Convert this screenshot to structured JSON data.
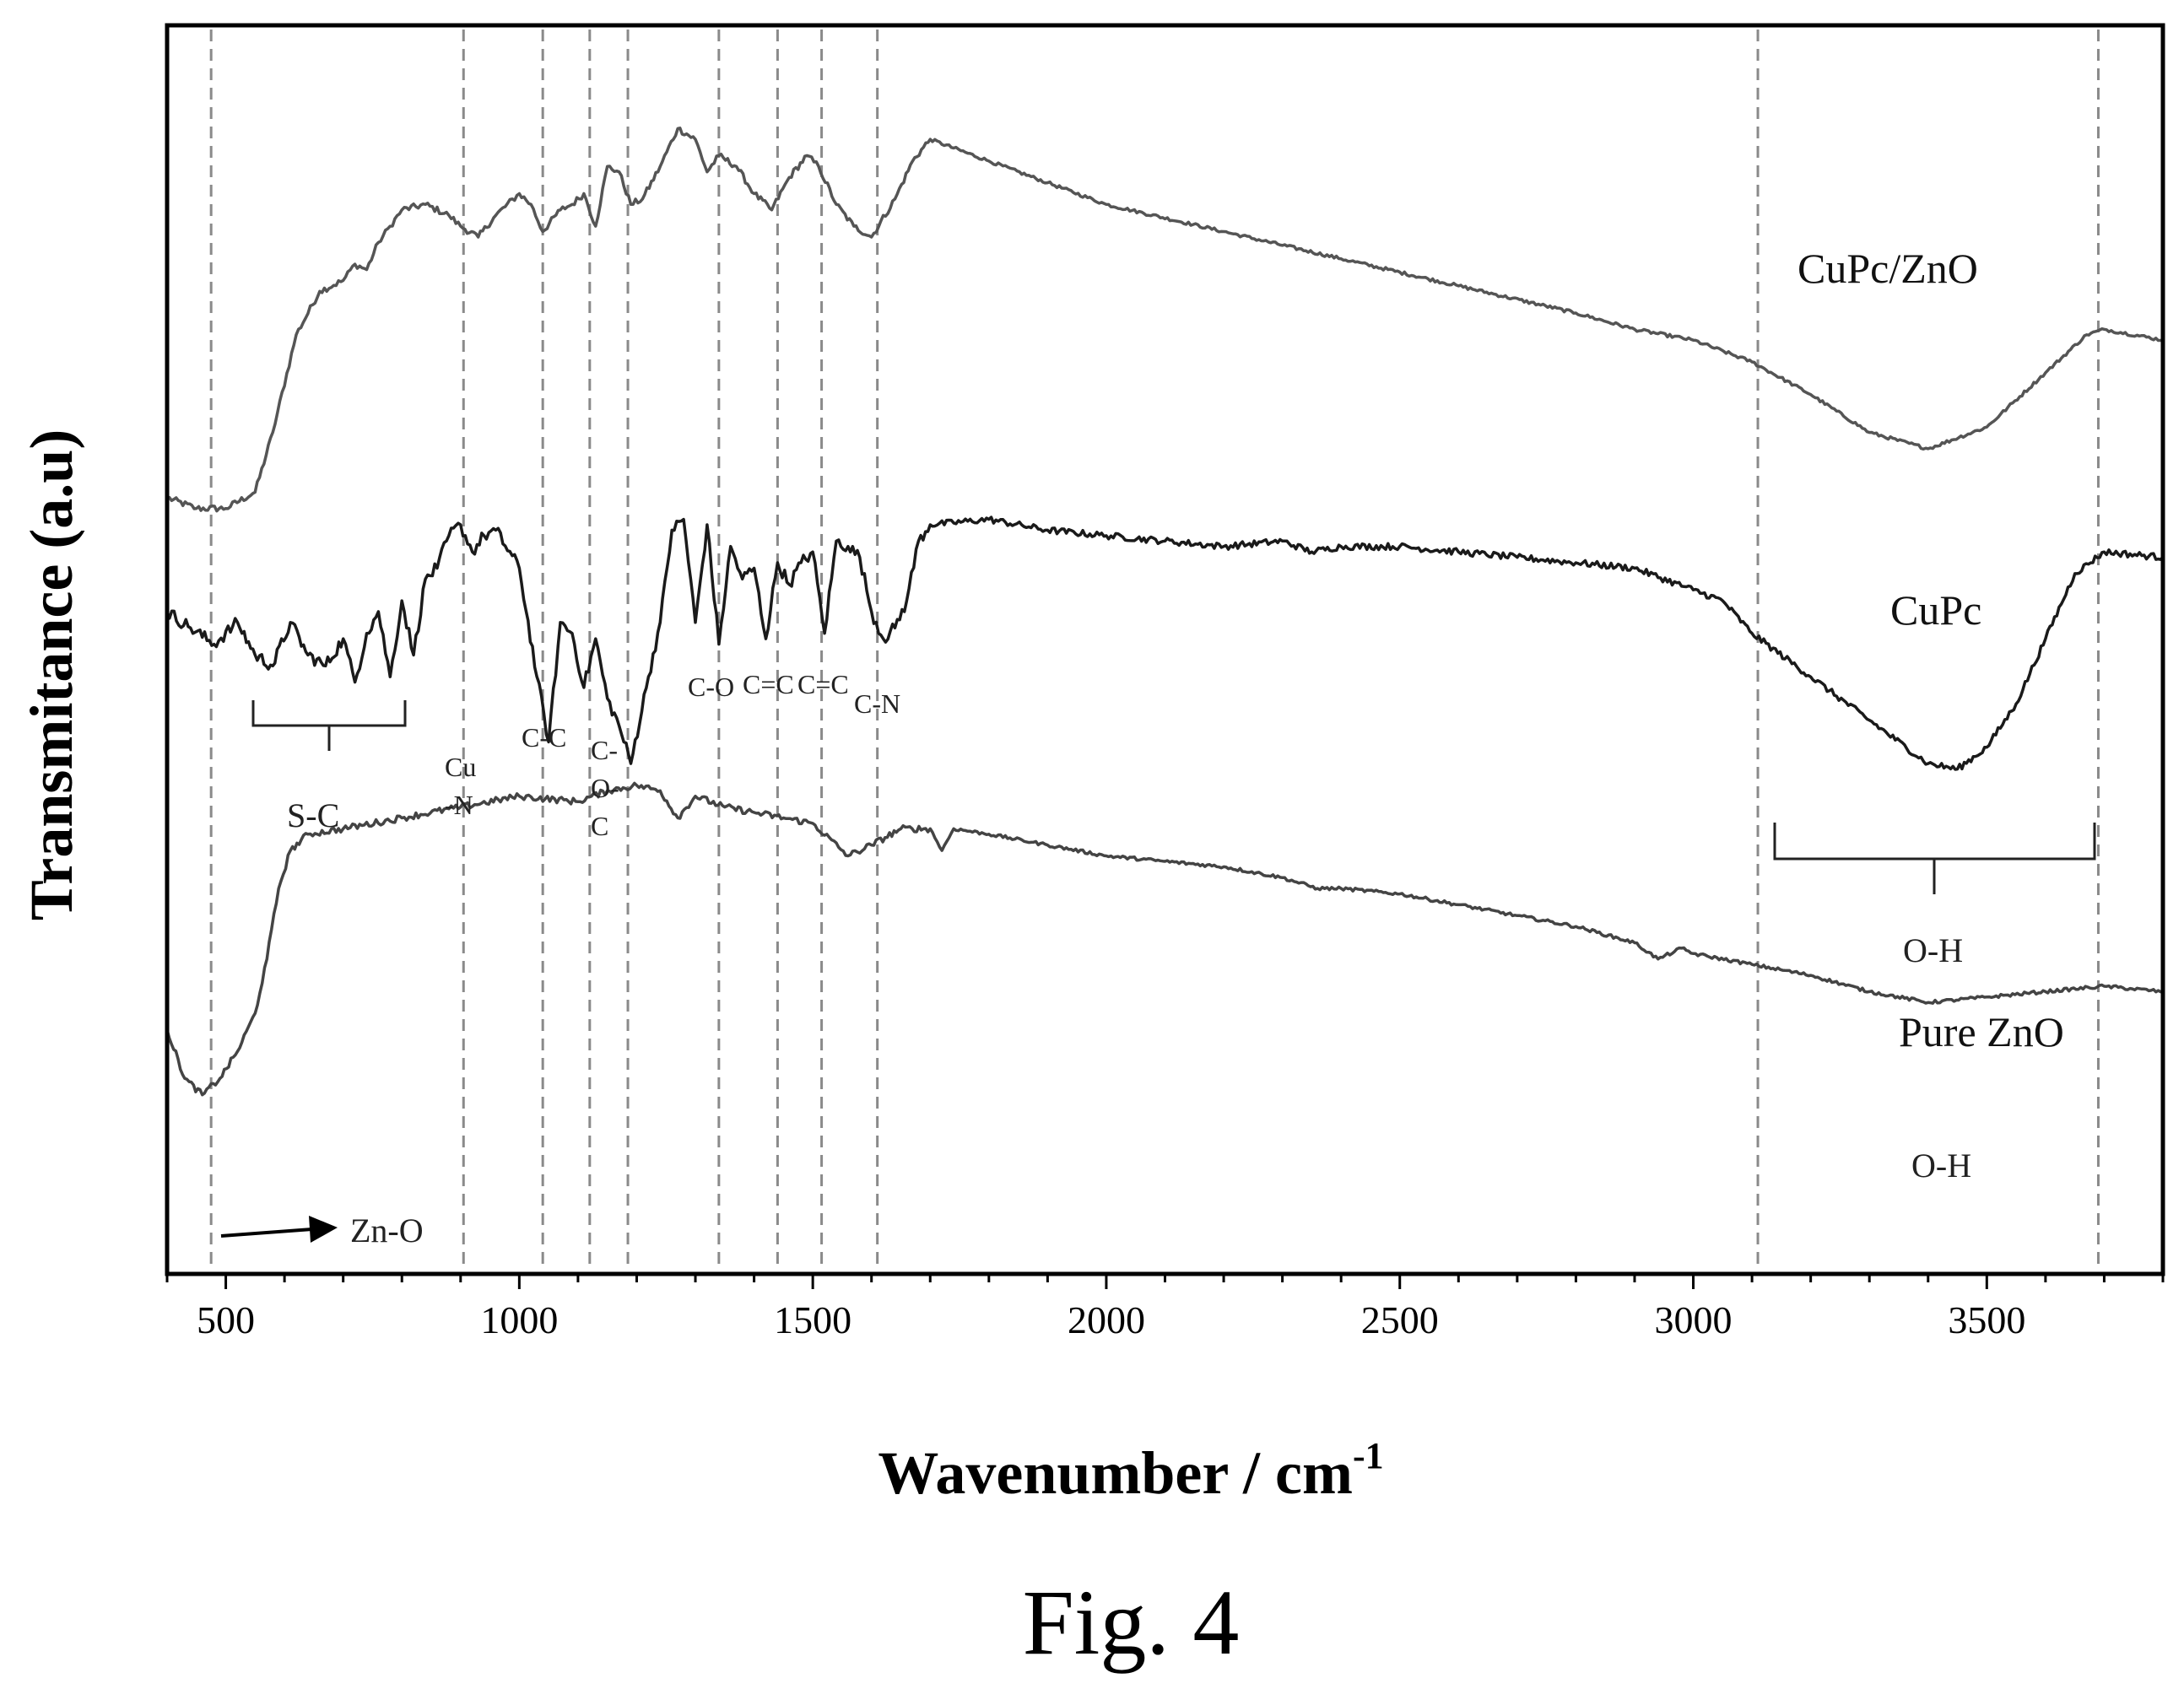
{
  "figure_caption": "Fig. 4",
  "chart_data": {
    "type": "line",
    "title": "",
    "xlabel": "Wavenumber / cm",
    "xlabel_superscript": "-1",
    "ylabel": "Transmitance (a.u)",
    "xlim": [
      400,
      3800
    ],
    "x_ticks": [
      500,
      1000,
      1500,
      2000,
      2500,
      3000,
      3500
    ],
    "x_minor_step": 100,
    "y_ticks": [],
    "grid": false,
    "series": [
      {
        "name": "CuPc/ZnO",
        "color": "#555555",
        "points": [
          [
            400,
            1.43
          ],
          [
            450,
            1.41
          ],
          [
            500,
            1.41
          ],
          [
            550,
            1.44
          ],
          [
            580,
            1.55
          ],
          [
            620,
            1.73
          ],
          [
            660,
            1.81
          ],
          [
            700,
            1.83
          ],
          [
            720,
            1.86
          ],
          [
            740,
            1.85
          ],
          [
            760,
            1.9
          ],
          [
            780,
            1.93
          ],
          [
            800,
            1.96
          ],
          [
            840,
            1.97
          ],
          [
            880,
            1.95
          ],
          [
            900,
            1.93
          ],
          [
            930,
            1.91
          ],
          [
            960,
            1.95
          ],
          [
            1000,
            1.99
          ],
          [
            1020,
            1.97
          ],
          [
            1040,
            1.92
          ],
          [
            1070,
            1.96
          ],
          [
            1090,
            1.97
          ],
          [
            1110,
            1.99
          ],
          [
            1130,
            1.93
          ],
          [
            1150,
            2.04
          ],
          [
            1170,
            2.03
          ],
          [
            1190,
            1.97
          ],
          [
            1210,
            1.98
          ],
          [
            1240,
            2.04
          ],
          [
            1270,
            2.11
          ],
          [
            1300,
            2.09
          ],
          [
            1320,
            2.03
          ],
          [
            1340,
            2.06
          ],
          [
            1370,
            2.04
          ],
          [
            1400,
            1.99
          ],
          [
            1430,
            1.96
          ],
          [
            1460,
            2.02
          ],
          [
            1490,
            2.06
          ],
          [
            1510,
            2.04
          ],
          [
            1540,
            1.97
          ],
          [
            1570,
            1.93
          ],
          [
            1600,
            1.91
          ],
          [
            1640,
            1.98
          ],
          [
            1670,
            2.05
          ],
          [
            1700,
            2.09
          ],
          [
            1800,
            2.05
          ],
          [
            1900,
            2.01
          ],
          [
            2000,
            1.97
          ],
          [
            2200,
            1.92
          ],
          [
            2400,
            1.87
          ],
          [
            2600,
            1.82
          ],
          [
            2800,
            1.77
          ],
          [
            2900,
            1.74
          ],
          [
            3000,
            1.72
          ],
          [
            3100,
            1.68
          ],
          [
            3200,
            1.62
          ],
          [
            3300,
            1.55
          ],
          [
            3400,
            1.52
          ],
          [
            3500,
            1.56
          ],
          [
            3600,
            1.66
          ],
          [
            3670,
            1.73
          ],
          [
            3700,
            1.74
          ],
          [
            3800,
            1.72
          ]
        ]
      },
      {
        "name": "CuPc",
        "color": "#1a1a1a",
        "points": [
          [
            400,
            1.22
          ],
          [
            440,
            1.19
          ],
          [
            480,
            1.16
          ],
          [
            520,
            1.2
          ],
          [
            550,
            1.14
          ],
          [
            580,
            1.12
          ],
          [
            610,
            1.2
          ],
          [
            640,
            1.14
          ],
          [
            670,
            1.12
          ],
          [
            700,
            1.17
          ],
          [
            720,
            1.09
          ],
          [
            740,
            1.18
          ],
          [
            760,
            1.22
          ],
          [
            780,
            1.1
          ],
          [
            800,
            1.24
          ],
          [
            820,
            1.14
          ],
          [
            840,
            1.28
          ],
          [
            860,
            1.3
          ],
          [
            880,
            1.36
          ],
          [
            900,
            1.38
          ],
          [
            920,
            1.33
          ],
          [
            940,
            1.36
          ],
          [
            960,
            1.37
          ],
          [
            1000,
            1.3
          ],
          [
            1030,
            1.1
          ],
          [
            1050,
            0.98
          ],
          [
            1070,
            1.2
          ],
          [
            1090,
            1.18
          ],
          [
            1110,
            1.08
          ],
          [
            1130,
            1.17
          ],
          [
            1150,
            1.06
          ],
          [
            1170,
            1.01
          ],
          [
            1190,
            0.94
          ],
          [
            1220,
            1.1
          ],
          [
            1240,
            1.2
          ],
          [
            1260,
            1.37
          ],
          [
            1280,
            1.39
          ],
          [
            1300,
            1.2
          ],
          [
            1320,
            1.38
          ],
          [
            1340,
            1.16
          ],
          [
            1360,
            1.34
          ],
          [
            1380,
            1.28
          ],
          [
            1400,
            1.3
          ],
          [
            1420,
            1.17
          ],
          [
            1440,
            1.31
          ],
          [
            1460,
            1.27
          ],
          [
            1480,
            1.31
          ],
          [
            1500,
            1.33
          ],
          [
            1520,
            1.18
          ],
          [
            1540,
            1.35
          ],
          [
            1560,
            1.34
          ],
          [
            1580,
            1.32
          ],
          [
            1600,
            1.22
          ],
          [
            1620,
            1.17
          ],
          [
            1640,
            1.19
          ],
          [
            1660,
            1.24
          ],
          [
            1680,
            1.35
          ],
          [
            1700,
            1.38
          ],
          [
            1800,
            1.39
          ],
          [
            1900,
            1.37
          ],
          [
            2000,
            1.36
          ],
          [
            2100,
            1.35
          ],
          [
            2200,
            1.34
          ],
          [
            2300,
            1.35
          ],
          [
            2350,
            1.33
          ],
          [
            2400,
            1.34
          ],
          [
            2500,
            1.34
          ],
          [
            2600,
            1.33
          ],
          [
            2700,
            1.32
          ],
          [
            2800,
            1.31
          ],
          [
            2900,
            1.3
          ],
          [
            3000,
            1.26
          ],
          [
            3050,
            1.24
          ],
          [
            3100,
            1.18
          ],
          [
            3200,
            1.1
          ],
          [
            3300,
            1.02
          ],
          [
            3400,
            0.94
          ],
          [
            3450,
            0.93
          ],
          [
            3500,
            0.97
          ],
          [
            3550,
            1.05
          ],
          [
            3600,
            1.17
          ],
          [
            3650,
            1.29
          ],
          [
            3700,
            1.33
          ],
          [
            3800,
            1.32
          ]
        ]
      },
      {
        "name": "Pure ZnO",
        "color": "#444444",
        "points": [
          [
            400,
            0.45
          ],
          [
            430,
            0.36
          ],
          [
            460,
            0.33
          ],
          [
            490,
            0.36
          ],
          [
            520,
            0.41
          ],
          [
            550,
            0.48
          ],
          [
            570,
            0.58
          ],
          [
            590,
            0.71
          ],
          [
            610,
            0.78
          ],
          [
            640,
            0.81
          ],
          [
            700,
            0.82
          ],
          [
            800,
            0.84
          ],
          [
            900,
            0.86
          ],
          [
            1000,
            0.88
          ],
          [
            1100,
            0.87
          ],
          [
            1150,
            0.89
          ],
          [
            1200,
            0.9
          ],
          [
            1240,
            0.89
          ],
          [
            1270,
            0.84
          ],
          [
            1300,
            0.88
          ],
          [
            1350,
            0.86
          ],
          [
            1400,
            0.85
          ],
          [
            1450,
            0.84
          ],
          [
            1500,
            0.83
          ],
          [
            1560,
            0.77
          ],
          [
            1600,
            0.79
          ],
          [
            1650,
            0.82
          ],
          [
            1700,
            0.82
          ],
          [
            1720,
            0.78
          ],
          [
            1740,
            0.82
          ],
          [
            1800,
            0.81
          ],
          [
            1900,
            0.79
          ],
          [
            2000,
            0.77
          ],
          [
            2100,
            0.76
          ],
          [
            2200,
            0.75
          ],
          [
            2300,
            0.73
          ],
          [
            2360,
            0.71
          ],
          [
            2400,
            0.71
          ],
          [
            2500,
            0.7
          ],
          [
            2600,
            0.68
          ],
          [
            2700,
            0.66
          ],
          [
            2800,
            0.64
          ],
          [
            2900,
            0.61
          ],
          [
            2940,
            0.58
          ],
          [
            2980,
            0.6
          ],
          [
            3000,
            0.59
          ],
          [
            3100,
            0.57
          ],
          [
            3200,
            0.55
          ],
          [
            3300,
            0.52
          ],
          [
            3400,
            0.5
          ],
          [
            3500,
            0.51
          ],
          [
            3600,
            0.52
          ],
          [
            3700,
            0.53
          ],
          [
            3800,
            0.52
          ]
        ]
      }
    ],
    "reference_lines_x": [
      475,
      905,
      1040,
      1120,
      1185,
      1340,
      1440,
      1515,
      1610,
      3110,
      3690
    ],
    "annotations": {
      "s_c": "S-C",
      "cu_n": [
        "Cu",
        "-N"
      ],
      "c_c": "C-C",
      "c_o_c": [
        "C-",
        "O-",
        "C"
      ],
      "c_o": "C-O",
      "c_eq_c_1": "C=C",
      "c_eq_c_2": "C=C",
      "c_n": "C-N",
      "o_h_1": "O-H",
      "o_h_2": "O-H",
      "zn_o": "Zn-O"
    }
  }
}
